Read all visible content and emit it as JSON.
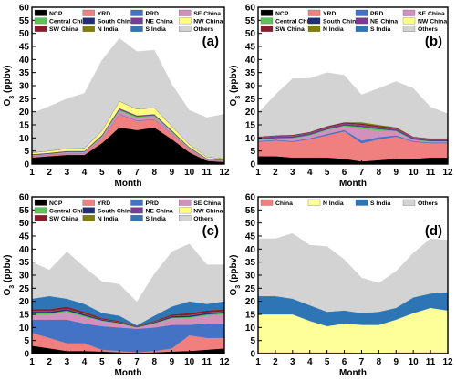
{
  "chart_data": [
    {
      "type": "area",
      "stacked": true,
      "panel_label": "(a)",
      "xlabel": "Month",
      "ylabel_main": "O",
      "ylabel_sub": "3",
      "ylabel_unit": " (ppbv)",
      "xlim": [
        1,
        12
      ],
      "ylim": [
        0,
        60
      ],
      "x": [
        1,
        2,
        3,
        4,
        5,
        6,
        7,
        8,
        9,
        10,
        11,
        12
      ],
      "xticks": [
        "1",
        "2",
        "3",
        "4",
        "5",
        "6",
        "7",
        "8",
        "9",
        "10",
        "11",
        "12"
      ],
      "yticks": [
        "0",
        "5",
        "10",
        "15",
        "20",
        "25",
        "30",
        "35",
        "40",
        "45",
        "50",
        "55",
        "60"
      ],
      "legend_columns": 4,
      "series": [
        {
          "name": "NCP",
          "color": "#000000",
          "values": [
            2.5,
            3.0,
            3.5,
            3.5,
            8.0,
            14.0,
            13.0,
            14.0,
            9.5,
            4.5,
            1.2,
            0.8
          ]
        },
        {
          "name": "YRD",
          "color": "#f08080",
          "values": [
            0.5,
            0.5,
            0.5,
            0.5,
            1.5,
            5.0,
            3.5,
            3.0,
            2.0,
            1.0,
            0.3,
            0.2
          ]
        },
        {
          "name": "PRD",
          "color": "#4472c4",
          "values": [
            0.1,
            0.1,
            0.1,
            0.1,
            0.1,
            0.2,
            0.2,
            0.2,
            0.1,
            0.1,
            0.1,
            0.1
          ]
        },
        {
          "name": "SE China",
          "color": "#d291bc",
          "values": [
            0.3,
            0.3,
            0.4,
            0.4,
            0.8,
            1.2,
            1.0,
            1.0,
            0.6,
            0.4,
            0.3,
            0.2
          ]
        },
        {
          "name": "Central China",
          "color": "#5ac55a",
          "values": [
            0.1,
            0.1,
            0.2,
            0.2,
            0.3,
            0.5,
            0.5,
            0.5,
            0.3,
            0.2,
            0.1,
            0.1
          ]
        },
        {
          "name": "South China",
          "color": "#1f2d7b",
          "values": [
            0.1,
            0.1,
            0.1,
            0.1,
            0.1,
            0.1,
            0.1,
            0.1,
            0.1,
            0.1,
            0.1,
            0.1
          ]
        },
        {
          "name": "NE China",
          "color": "#7b3a96",
          "values": [
            0.2,
            0.2,
            0.2,
            0.2,
            0.3,
            0.4,
            0.3,
            0.3,
            0.3,
            0.2,
            0.1,
            0.1
          ]
        },
        {
          "name": "NW China",
          "color": "#ffff80",
          "values": [
            0.5,
            0.7,
            0.9,
            1.0,
            1.5,
            2.6,
            2.4,
            2.4,
            1.5,
            1.0,
            0.5,
            0.4
          ]
        },
        {
          "name": "SW China",
          "color": "#8b1a2b",
          "values": [
            0.1,
            0.1,
            0.1,
            0.1,
            0.1,
            0.1,
            0.1,
            0.1,
            0.1,
            0.1,
            0.1,
            0.1
          ]
        },
        {
          "name": "N India",
          "color": "#808000",
          "values": [
            0.0,
            0.0,
            0.0,
            0.0,
            0.0,
            0.0,
            0.0,
            0.0,
            0.0,
            0.0,
            0.0,
            0.0
          ]
        },
        {
          "name": "S India",
          "color": "#2e75b6",
          "values": [
            0.0,
            0.0,
            0.0,
            0.0,
            0.0,
            0.0,
            0.0,
            0.0,
            0.0,
            0.0,
            0.0,
            0.0
          ]
        },
        {
          "name": "Others",
          "color": "#d3d3d3",
          "values": [
            15.0,
            17.0,
            19.0,
            21.0,
            27.0,
            24.0,
            22.0,
            22.0,
            16.0,
            13.0,
            15.0,
            17.0
          ]
        }
      ]
    },
    {
      "type": "area",
      "stacked": true,
      "panel_label": "(b)",
      "xlabel": "Month",
      "ylabel_main": "O",
      "ylabel_sub": "3",
      "ylabel_unit": " (ppbv)",
      "xlim": [
        1,
        12
      ],
      "ylim": [
        0,
        60
      ],
      "x": [
        1,
        2,
        3,
        4,
        5,
        6,
        7,
        8,
        9,
        10,
        11,
        12
      ],
      "xticks": [
        "1",
        "2",
        "3",
        "4",
        "5",
        "6",
        "7",
        "8",
        "9",
        "10",
        "11",
        "12"
      ],
      "yticks": [
        "0",
        "5",
        "10",
        "15",
        "20",
        "25",
        "30",
        "35",
        "40",
        "45",
        "50",
        "55",
        "60"
      ],
      "legend_columns": 4,
      "series": [
        {
          "name": "NCP",
          "color": "#000000",
          "values": [
            3.0,
            3.0,
            2.5,
            2.5,
            2.5,
            2.0,
            1.0,
            1.5,
            2.0,
            2.0,
            2.5,
            2.5
          ]
        },
        {
          "name": "YRD",
          "color": "#f08080",
          "values": [
            5.5,
            6.0,
            6.0,
            7.0,
            8.5,
            10.5,
            7.0,
            8.0,
            8.5,
            6.5,
            5.5,
            5.5
          ]
        },
        {
          "name": "PRD",
          "color": "#4472c4",
          "values": [
            0.3,
            0.3,
            0.3,
            0.4,
            0.5,
            0.5,
            1.0,
            0.8,
            0.5,
            0.3,
            0.3,
            0.3
          ]
        },
        {
          "name": "SE China",
          "color": "#d291bc",
          "values": [
            0.5,
            0.5,
            1.0,
            1.0,
            1.5,
            1.5,
            4.5,
            2.5,
            1.5,
            0.5,
            0.3,
            0.3
          ]
        },
        {
          "name": "Central China",
          "color": "#5ac55a",
          "values": [
            0.2,
            0.2,
            0.3,
            0.3,
            0.3,
            0.3,
            0.8,
            0.6,
            0.3,
            0.2,
            0.2,
            0.2
          ]
        },
        {
          "name": "South China",
          "color": "#1f2d7b",
          "values": [
            0.2,
            0.2,
            0.2,
            0.2,
            0.2,
            0.2,
            0.2,
            0.2,
            0.2,
            0.2,
            0.2,
            0.2
          ]
        },
        {
          "name": "NE China",
          "color": "#7b3a96",
          "values": [
            0.5,
            0.5,
            0.5,
            0.5,
            0.5,
            0.5,
            0.5,
            0.5,
            0.5,
            0.5,
            0.5,
            0.5
          ]
        },
        {
          "name": "NW China",
          "color": "#ffff80",
          "values": [
            0.0,
            0.0,
            0.0,
            0.0,
            0.0,
            0.0,
            0.0,
            0.0,
            0.0,
            0.0,
            0.0,
            0.0
          ]
        },
        {
          "name": "SW China",
          "color": "#8b1a2b",
          "values": [
            0.3,
            0.3,
            0.4,
            0.4,
            0.5,
            0.5,
            0.5,
            0.5,
            0.4,
            0.3,
            0.3,
            0.3
          ]
        },
        {
          "name": "N India",
          "color": "#808000",
          "values": [
            0.0,
            0.0,
            0.0,
            0.0,
            0.0,
            0.0,
            0.5,
            0.4,
            0.2,
            0.0,
            0.0,
            0.0
          ]
        },
        {
          "name": "S India",
          "color": "#2e75b6",
          "values": [
            0.0,
            0.0,
            0.0,
            0.0,
            0.0,
            0.0,
            0.0,
            0.0,
            0.0,
            0.0,
            0.0,
            0.0
          ]
        },
        {
          "name": "Others",
          "color": "#d3d3d3",
          "values": [
            9.0,
            15.5,
            21.5,
            20.5,
            20.5,
            18.0,
            10.5,
            14.0,
            17.5,
            18.5,
            12.0,
            9.5
          ]
        }
      ]
    },
    {
      "type": "area",
      "stacked": true,
      "panel_label": "(c)",
      "xlabel": "Month",
      "ylabel_main": "O",
      "ylabel_sub": "3",
      "ylabel_unit": " (ppbv)",
      "xlim": [
        1,
        12
      ],
      "ylim": [
        0,
        60
      ],
      "x": [
        1,
        2,
        3,
        4,
        5,
        6,
        7,
        8,
        9,
        10,
        11,
        12
      ],
      "xticks": [
        "1",
        "2",
        "3",
        "4",
        "5",
        "6",
        "7",
        "8",
        "9",
        "10",
        "11",
        "12"
      ],
      "yticks": [
        "0",
        "5",
        "10",
        "15",
        "20",
        "25",
        "30",
        "35",
        "40",
        "45",
        "50",
        "55",
        "60"
      ],
      "legend_columns": 4,
      "series": [
        {
          "name": "NCP",
          "color": "#000000",
          "values": [
            3.0,
            2.0,
            1.0,
            1.0,
            0.8,
            0.5,
            0.3,
            0.5,
            0.8,
            1.0,
            1.5,
            2.0
          ]
        },
        {
          "name": "YRD",
          "color": "#f08080",
          "values": [
            5.0,
            4.0,
            3.0,
            3.0,
            0.7,
            0.5,
            0.2,
            0.5,
            1.2,
            6.0,
            4.5,
            4.0
          ]
        },
        {
          "name": "PRD",
          "color": "#4472c4",
          "values": [
            5.0,
            7.0,
            9.0,
            7.5,
            9.0,
            9.0,
            9.0,
            9.0,
            9.0,
            4.0,
            5.5,
            5.5
          ]
        },
        {
          "name": "SE China",
          "color": "#d291bc",
          "values": [
            2.0,
            2.0,
            3.0,
            2.5,
            2.0,
            1.5,
            0.5,
            1.5,
            2.5,
            2.5,
            3.0,
            3.5
          ]
        },
        {
          "name": "Central China",
          "color": "#5ac55a",
          "values": [
            0.5,
            0.5,
            0.5,
            0.5,
            0.2,
            0.2,
            0.1,
            0.2,
            0.3,
            0.5,
            0.5,
            0.5
          ]
        },
        {
          "name": "South China",
          "color": "#1f2d7b",
          "values": [
            0.5,
            0.5,
            0.5,
            0.5,
            0.3,
            0.3,
            0.2,
            0.3,
            0.5,
            0.5,
            0.5,
            0.5
          ]
        },
        {
          "name": "NE China",
          "color": "#7b3a96",
          "values": [
            0.2,
            0.2,
            0.2,
            0.2,
            0.1,
            0.1,
            0.1,
            0.1,
            0.1,
            0.2,
            0.2,
            0.2
          ]
        },
        {
          "name": "NW China",
          "color": "#ffff80",
          "values": [
            0.0,
            0.0,
            0.0,
            0.0,
            0.0,
            0.0,
            0.0,
            0.0,
            0.0,
            0.0,
            0.0,
            0.0
          ]
        },
        {
          "name": "SW China",
          "color": "#8b1a2b",
          "values": [
            0.8,
            0.8,
            0.8,
            0.8,
            0.5,
            0.4,
            0.2,
            0.4,
            0.6,
            0.8,
            0.8,
            0.8
          ]
        },
        {
          "name": "N India",
          "color": "#808000",
          "values": [
            0.0,
            0.0,
            0.0,
            0.0,
            0.0,
            0.0,
            0.0,
            0.0,
            0.0,
            0.0,
            0.0,
            0.0
          ]
        },
        {
          "name": "S India",
          "color": "#2e75b6",
          "values": [
            4.0,
            5.0,
            3.0,
            3.0,
            2.0,
            2.0,
            0.2,
            2.0,
            3.0,
            4.5,
            2.5,
            3.0
          ]
        },
        {
          "name": "Others",
          "color": "#d3d3d3",
          "values": [
            14.0,
            10.0,
            18.0,
            14.0,
            12.0,
            12.0,
            9.0,
            16.0,
            21.0,
            22.0,
            15.0,
            14.0
          ]
        }
      ]
    },
    {
      "type": "area",
      "stacked": true,
      "panel_label": "(d)",
      "xlabel": "Month",
      "ylabel_main": "O",
      "ylabel_sub": "3",
      "ylabel_unit": " (ppbv)",
      "xlim": [
        1,
        12
      ],
      "ylim": [
        0,
        60
      ],
      "x": [
        1,
        2,
        3,
        4,
        5,
        6,
        7,
        8,
        9,
        10,
        11,
        12
      ],
      "xticks": [
        "1",
        "2",
        "3",
        "4",
        "5",
        "6",
        "7",
        "8",
        "9",
        "10",
        "11",
        "12"
      ],
      "yticks": [
        "0",
        "5",
        "10",
        "15",
        "20",
        "25",
        "30",
        "35",
        "40",
        "45",
        "50",
        "55",
        "60"
      ],
      "legend_columns": 4,
      "series": [
        {
          "name": "China",
          "color": "#f08080",
          "values": [
            0.5,
            0.5,
            0.5,
            0.5,
            0.5,
            0.5,
            0.3,
            0.3,
            0.5,
            0.5,
            0.5,
            0.5
          ]
        },
        {
          "name": "N India",
          "color": "#ffff99",
          "values": [
            14.5,
            14.5,
            14.5,
            12.0,
            10.0,
            11.0,
            10.7,
            10.7,
            12.5,
            15.0,
            17.0,
            16.0
          ]
        },
        {
          "name": "S India",
          "color": "#2e75b6",
          "values": [
            7.0,
            7.0,
            6.0,
            6.0,
            5.5,
            5.0,
            4.5,
            5.0,
            4.5,
            6.0,
            5.5,
            7.0
          ]
        },
        {
          "name": "Others",
          "color": "#d3d3d3",
          "values": [
            22.0,
            22.0,
            25.0,
            23.0,
            25.0,
            19.5,
            13.5,
            11.0,
            14.0,
            17.0,
            21.0,
            20.0
          ]
        }
      ]
    }
  ]
}
